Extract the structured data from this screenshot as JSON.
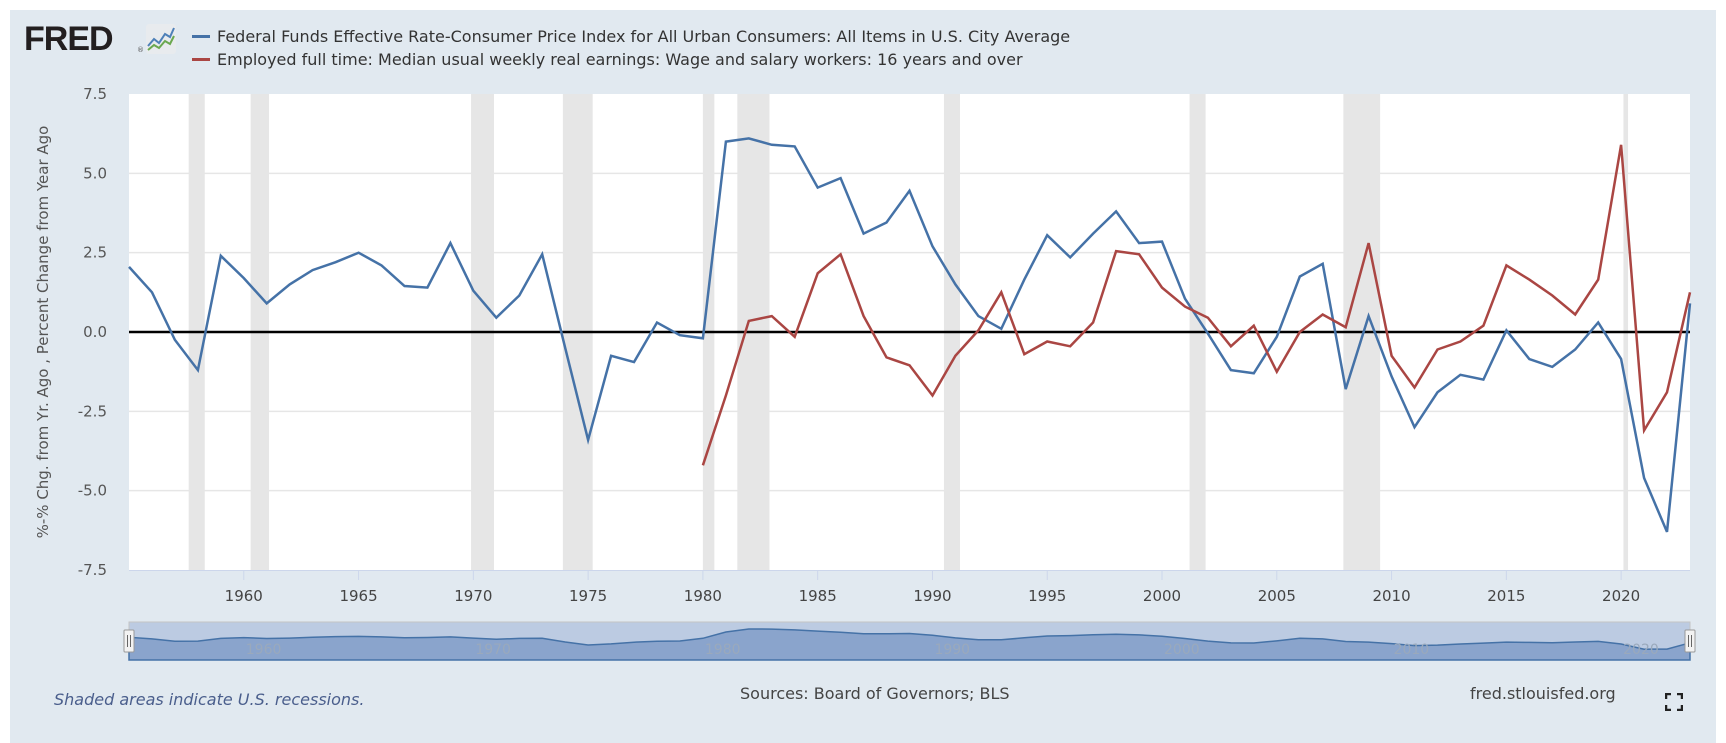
{
  "header": {
    "logo_text": "FRED",
    "logo_registered": "®",
    "legend": [
      {
        "label": "Federal Funds Effective Rate-Consumer Price Index for All Urban Consumers: All Items in U.S. City Average",
        "color": "#4572a7"
      },
      {
        "label": "Employed full time: Median usual weekly real earnings: Wage and salary workers: 16 years and over",
        "color": "#aa4643"
      }
    ]
  },
  "footer": {
    "note": "Shaded areas indicate U.S. recessions.",
    "sources": "Sources: Board of Governors; BLS",
    "site": "fred.stlouisfed.org",
    "fullscreen_icon": "fullscreen-icon"
  },
  "colors": {
    "background": "#e1e9f0",
    "plot_background": "#ffffff",
    "recession_shade": "#e6e6e6",
    "zero_line": "#000000",
    "navigator_fill": "#8aa4cc",
    "navigator_bg": "#bccbe2"
  },
  "chart_data": {
    "type": "line",
    "title": "",
    "xlabel": "",
    "ylabel": "%-% Chg. from Yr. Ago , Percent Change from Year Ago",
    "xlim": [
      1955,
      2023
    ],
    "ylim": [
      -7.5,
      7.5
    ],
    "yticks": [
      "7.5",
      "5.0",
      "2.5",
      "0.0",
      "-2.5",
      "-5.0",
      "-7.5"
    ],
    "ytick_values": [
      7.5,
      5.0,
      2.5,
      0.0,
      -2.5,
      -5.0,
      -7.5
    ],
    "xticks": [
      "1960",
      "1965",
      "1970",
      "1975",
      "1980",
      "1985",
      "1990",
      "1995",
      "2000",
      "2005",
      "2010",
      "2015",
      "2020"
    ],
    "navigator_ticks": [
      "1960",
      "1970",
      "1980",
      "1990",
      "2000",
      "2010",
      "2020"
    ],
    "grid": true,
    "zero_line": 0,
    "legend_position": "top",
    "recessions": [
      [
        1957.6,
        1958.3
      ],
      [
        1960.3,
        1961.1
      ],
      [
        1969.9,
        1970.9
      ],
      [
        1973.9,
        1975.2
      ],
      [
        1980.0,
        1980.5
      ],
      [
        1981.5,
        1982.9
      ],
      [
        1990.5,
        1991.2
      ],
      [
        2001.2,
        2001.9
      ],
      [
        2007.9,
        2009.5
      ],
      [
        2020.1,
        2020.3
      ]
    ],
    "series": [
      {
        "name": "Federal Funds Effective Rate-Consumer Price Index for All Urban Consumers: All Items in U.S. City Average",
        "color": "#4572a7",
        "x": [
          1955,
          1956,
          1957,
          1958,
          1959,
          1960,
          1961,
          1962,
          1963,
          1964,
          1965,
          1966,
          1967,
          1968,
          1969,
          1970,
          1971,
          1972,
          1973,
          1974,
          1975,
          1976,
          1977,
          1978,
          1979,
          1980,
          1981,
          1982,
          1983,
          1984,
          1985,
          1986,
          1987,
          1988,
          1989,
          1990,
          1991,
          1992,
          1993,
          1994,
          1995,
          1996,
          1997,
          1998,
          1999,
          2000,
          2001,
          2002,
          2003,
          2004,
          2005,
          2006,
          2007,
          2008,
          2009,
          2010,
          2011,
          2012,
          2013,
          2014,
          2015,
          2016,
          2017,
          2018,
          2019,
          2020,
          2021,
          2022,
          2023
        ],
        "values": [
          2.05,
          1.25,
          -0.25,
          -1.2,
          2.4,
          1.7,
          0.9,
          1.5,
          1.95,
          2.2,
          2.5,
          2.1,
          1.45,
          1.4,
          2.8,
          1.3,
          0.45,
          1.15,
          2.45,
          -0.5,
          -3.4,
          -0.75,
          -0.95,
          0.3,
          -0.1,
          -0.2,
          6.0,
          6.1,
          5.9,
          5.85,
          4.55,
          4.85,
          3.1,
          3.45,
          4.45,
          2.7,
          1.5,
          0.5,
          0.1,
          1.65,
          3.05,
          2.35,
          3.1,
          3.8,
          2.8,
          2.85,
          1.05,
          -0.05,
          -1.2,
          -1.3,
          -0.15,
          1.75,
          2.15,
          -1.8,
          0.5,
          -1.4,
          -3.0,
          -1.9,
          -1.35,
          -1.5,
          0.05,
          -0.85,
          -1.1,
          -0.55,
          0.3,
          -0.85,
          -4.6,
          -6.3,
          0.9
        ]
      },
      {
        "name": "Employed full time: Median usual weekly real earnings: Wage and salary workers: 16 years and over",
        "color": "#aa4643",
        "x": [
          1980,
          1981,
          1982,
          1983,
          1984,
          1985,
          1986,
          1987,
          1988,
          1989,
          1990,
          1991,
          1992,
          1993,
          1994,
          1995,
          1996,
          1997,
          1998,
          1999,
          2000,
          2001,
          2002,
          2003,
          2004,
          2005,
          2006,
          2007,
          2008,
          2009,
          2010,
          2011,
          2012,
          2013,
          2014,
          2015,
          2016,
          2017,
          2018,
          2019,
          2020,
          2021,
          2022,
          2023
        ],
        "values": [
          -4.2,
          -2.0,
          0.35,
          0.5,
          -0.15,
          1.85,
          2.45,
          0.5,
          -0.8,
          -1.05,
          -2.0,
          -0.75,
          0.05,
          1.25,
          -0.7,
          -0.3,
          -0.45,
          0.3,
          2.55,
          2.45,
          1.4,
          0.8,
          0.45,
          -0.45,
          0.2,
          -1.25,
          0.0,
          0.55,
          0.15,
          2.8,
          -0.75,
          -1.75,
          -0.55,
          -0.3,
          0.2,
          2.1,
          1.65,
          1.15,
          0.55,
          1.65,
          5.9,
          -3.1,
          -1.9,
          1.25
        ]
      }
    ]
  }
}
